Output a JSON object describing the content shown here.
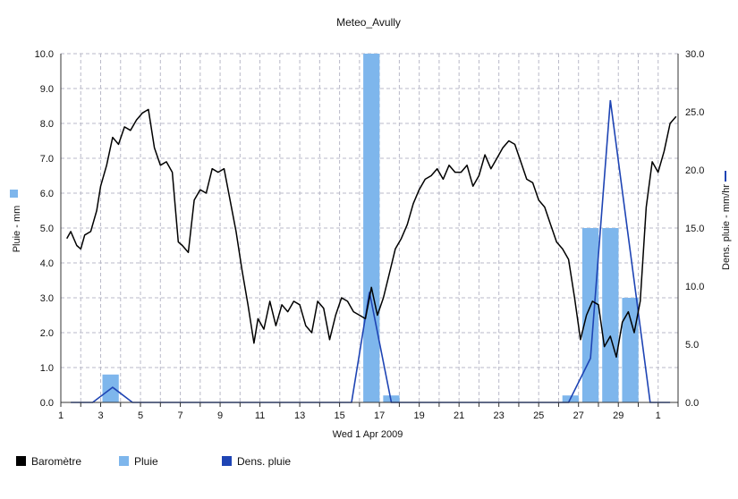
{
  "chart_data": {
    "type": "bar+line",
    "title": "Meteo_Avully",
    "xlabel": "Wed 1 Apr 2009",
    "ylabel_left": "Pluie - mm",
    "ylabel_right": "Dens. pluie - mm/hr",
    "x_ticks": [
      "1",
      "3",
      "5",
      "7",
      "9",
      "11",
      "13",
      "15",
      "17",
      "19",
      "21",
      "23",
      "25",
      "27",
      "29",
      "1"
    ],
    "x_tick_values": [
      1,
      3,
      5,
      7,
      9,
      11,
      13,
      15,
      17,
      19,
      21,
      23,
      25,
      27,
      29,
      31
    ],
    "xlim": [
      1,
      32
    ],
    "ylim_left": [
      0,
      10
    ],
    "yticks_left": [
      "0.0",
      "1.0",
      "2.0",
      "3.0",
      "4.0",
      "5.0",
      "6.0",
      "7.0",
      "8.0",
      "9.0",
      "10.0"
    ],
    "ylim_right": [
      0,
      30
    ],
    "yticks_right": [
      "0.0",
      "5.0",
      "10.0",
      "15.0",
      "20.0",
      "25.0",
      "30.0"
    ],
    "grid": true,
    "colors": {
      "barometre": "#000000",
      "pluie": "#7eb6ec",
      "dens": "#1e44b4",
      "grid": "#b9b9c8"
    },
    "series": [
      {
        "name": "Pluie",
        "kind": "bar",
        "axis": "left",
        "x": [
          3.5,
          16.6,
          17.6,
          26.6,
          27.6,
          28.6,
          29.6
        ],
        "values": [
          0.8,
          10.0,
          0.2,
          0.2,
          5.0,
          5.0,
          3.0
        ]
      },
      {
        "name": "Dens. pluie",
        "kind": "line",
        "axis": "right",
        "x": [
          1.5,
          2.6,
          3.6,
          4.6,
          15.6,
          16.5,
          17.6,
          26.5,
          27.6,
          28.6,
          30.6,
          31.6
        ],
        "values": [
          0,
          0,
          1.3,
          0,
          0,
          9.5,
          0,
          0,
          3.8,
          26,
          0,
          0
        ]
      },
      {
        "name": "Baromètre",
        "kind": "line",
        "axis": "left",
        "x": [
          1.3,
          1.5,
          1.8,
          2.0,
          2.2,
          2.5,
          2.8,
          3.0,
          3.3,
          3.6,
          3.9,
          4.2,
          4.5,
          4.8,
          5.1,
          5.4,
          5.7,
          6.0,
          6.3,
          6.6,
          6.9,
          7.1,
          7.4,
          7.7,
          8.0,
          8.3,
          8.6,
          8.9,
          9.2,
          9.5,
          9.8,
          10.1,
          10.4,
          10.7,
          10.9,
          11.2,
          11.5,
          11.8,
          12.1,
          12.4,
          12.7,
          13.0,
          13.3,
          13.6,
          13.9,
          14.2,
          14.5,
          14.8,
          15.1,
          15.4,
          15.7,
          16.0,
          16.3,
          16.6,
          16.9,
          17.2,
          17.5,
          17.8,
          18.1,
          18.4,
          18.7,
          19.0,
          19.3,
          19.6,
          19.9,
          20.2,
          20.5,
          20.8,
          21.1,
          21.4,
          21.7,
          22.0,
          22.3,
          22.6,
          22.9,
          23.2,
          23.5,
          23.8,
          24.1,
          24.4,
          24.7,
          25.0,
          25.3,
          25.6,
          25.9,
          26.2,
          26.5,
          26.8,
          27.1,
          27.4,
          27.7,
          28.0,
          28.3,
          28.6,
          28.9,
          29.2,
          29.5,
          29.8,
          30.1,
          30.4,
          30.7,
          31.0,
          31.3,
          31.6,
          31.9
        ],
        "values": [
          4.7,
          4.9,
          4.5,
          4.4,
          4.8,
          4.9,
          5.5,
          6.2,
          6.8,
          7.6,
          7.4,
          7.9,
          7.8,
          8.1,
          8.3,
          8.4,
          7.3,
          6.8,
          6.9,
          6.6,
          4.6,
          4.5,
          4.3,
          5.8,
          6.1,
          6.0,
          6.7,
          6.6,
          6.7,
          5.8,
          4.9,
          3.8,
          2.8,
          1.7,
          2.4,
          2.1,
          2.9,
          2.2,
          2.8,
          2.6,
          2.9,
          2.8,
          2.2,
          2.0,
          2.9,
          2.7,
          1.8,
          2.5,
          3.0,
          2.9,
          2.6,
          2.5,
          2.4,
          3.3,
          2.5,
          3.0,
          3.7,
          4.4,
          4.7,
          5.1,
          5.7,
          6.1,
          6.4,
          6.5,
          6.7,
          6.4,
          6.8,
          6.6,
          6.6,
          6.8,
          6.2,
          6.5,
          7.1,
          6.7,
          7.0,
          7.3,
          7.5,
          7.4,
          6.9,
          6.4,
          6.3,
          5.8,
          5.6,
          5.1,
          4.6,
          4.4,
          4.1,
          3.0,
          1.8,
          2.5,
          2.9,
          2.8,
          1.6,
          1.9,
          1.3,
          2.3,
          2.6,
          2.0,
          2.9,
          5.6,
          6.9,
          6.6,
          7.2,
          8.0,
          8.2
        ]
      }
    ],
    "legend_placement": "bottom"
  },
  "legend": [
    {
      "label": "Baromètre",
      "color": "#000000"
    },
    {
      "label": "Pluie",
      "color": "#7eb6ec"
    },
    {
      "label": "Dens. pluie",
      "color": "#1e44b4"
    }
  ]
}
